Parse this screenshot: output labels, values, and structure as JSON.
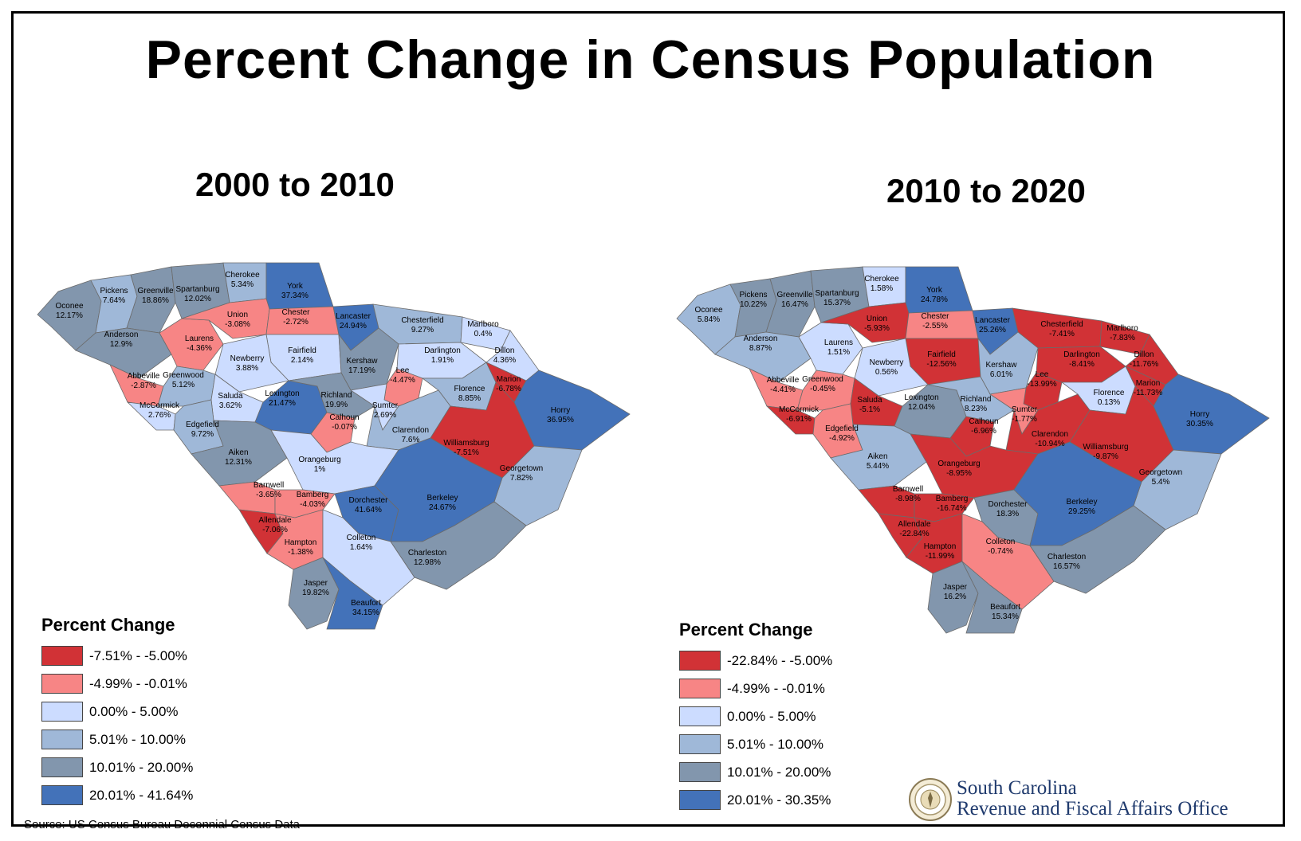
{
  "title": "Percent Change in Census Population",
  "maps": [
    {
      "subtitle": "2000 to 2010",
      "legend": {
        "title": "Percent Change",
        "items": [
          {
            "label": "-7.51% - -5.00%",
            "color": "#d13236"
          },
          {
            "label": "-4.99% - -0.01%",
            "color": "#f78585"
          },
          {
            "label": "0.00% - 5.00%",
            "color": "#ccdcff"
          },
          {
            "label": "5.01% - 10.00%",
            "color": "#9fb8d8"
          },
          {
            "label": "10.01% - 20.00%",
            "color": "#8296ad"
          },
          {
            "label": "20.01% - 41.64%",
            "color": "#4372b9"
          }
        ]
      },
      "counties": [
        {
          "name": "Oconee",
          "value": "12.17%",
          "cls": 4
        },
        {
          "name": "Pickens",
          "value": "7.64%",
          "cls": 3
        },
        {
          "name": "Greenville",
          "value": "18.86%",
          "cls": 4
        },
        {
          "name": "Spartanburg",
          "value": "12.02%",
          "cls": 4
        },
        {
          "name": "Cherokee",
          "value": "5.34%",
          "cls": 3
        },
        {
          "name": "York",
          "value": "37.34%",
          "cls": 5
        },
        {
          "name": "Anderson",
          "value": "12.9%",
          "cls": 4
        },
        {
          "name": "Laurens",
          "value": "-4.36%",
          "cls": 1
        },
        {
          "name": "Union",
          "value": "-3.08%",
          "cls": 1
        },
        {
          "name": "Chester",
          "value": "-2.72%",
          "cls": 1
        },
        {
          "name": "Lancaster",
          "value": "24.94%",
          "cls": 5
        },
        {
          "name": "Chesterfield",
          "value": "9.27%",
          "cls": 3
        },
        {
          "name": "Marlboro",
          "value": "0.4%",
          "cls": 2
        },
        {
          "name": "Fairfield",
          "value": "2.14%",
          "cls": 2
        },
        {
          "name": "Newberry",
          "value": "3.88%",
          "cls": 2
        },
        {
          "name": "Kershaw",
          "value": "17.19%",
          "cls": 4
        },
        {
          "name": "Darlington",
          "value": "1.91%",
          "cls": 2
        },
        {
          "name": "Dillon",
          "value": "4.36%",
          "cls": 2
        },
        {
          "name": "Abbeville",
          "value": "-2.87%",
          "cls": 1
        },
        {
          "name": "Greenwood",
          "value": "5.12%",
          "cls": 3
        },
        {
          "name": "McCormick",
          "value": "2.76%",
          "cls": 2
        },
        {
          "name": "Saluda",
          "value": "3.62%",
          "cls": 2
        },
        {
          "name": "Edgefield",
          "value": "9.72%",
          "cls": 3
        },
        {
          "name": "Lexington",
          "value": "21.47%",
          "cls": 5
        },
        {
          "name": "Richland",
          "value": "19.9%",
          "cls": 4
        },
        {
          "name": "Lee",
          "value": "-4.47%",
          "cls": 1
        },
        {
          "name": "Sumter",
          "value": "2.69%",
          "cls": 2
        },
        {
          "name": "Florence",
          "value": "8.85%",
          "cls": 3
        },
        {
          "name": "Marion",
          "value": "-6.78%",
          "cls": 0
        },
        {
          "name": "Horry",
          "value": "36.95%",
          "cls": 5
        },
        {
          "name": "Calhoun",
          "value": "-0.07%",
          "cls": 1
        },
        {
          "name": "Clarendon",
          "value": "7.6%",
          "cls": 3
        },
        {
          "name": "Williamsburg",
          "value": "-7.51%",
          "cls": 0
        },
        {
          "name": "Aiken",
          "value": "12.31%",
          "cls": 4
        },
        {
          "name": "Orangeburg",
          "value": "1%",
          "cls": 2
        },
        {
          "name": "Georgetown",
          "value": "7.82%",
          "cls": 3
        },
        {
          "name": "Barnwell",
          "value": "-3.65%",
          "cls": 1
        },
        {
          "name": "Bamberg",
          "value": "-4.03%",
          "cls": 1
        },
        {
          "name": "Dorchester",
          "value": "41.64%",
          "cls": 5
        },
        {
          "name": "Berkeley",
          "value": "24.67%",
          "cls": 5
        },
        {
          "name": "Allendale",
          "value": "-7.06%",
          "cls": 0
        },
        {
          "name": "Hampton",
          "value": "-1.38%",
          "cls": 1
        },
        {
          "name": "Colleton",
          "value": "1.64%",
          "cls": 2
        },
        {
          "name": "Charleston",
          "value": "12.98%",
          "cls": 4
        },
        {
          "name": "Jasper",
          "value": "19.82%",
          "cls": 4
        },
        {
          "name": "Beaufort",
          "value": "34.15%",
          "cls": 5
        }
      ]
    },
    {
      "subtitle": "2010 to 2020",
      "legend": {
        "title": "Percent Change",
        "items": [
          {
            "label": "-22.84% - -5.00%",
            "color": "#d13236"
          },
          {
            "label": "-4.99% - -0.01%",
            "color": "#f78585"
          },
          {
            "label": "0.00% - 5.00%",
            "color": "#ccdcff"
          },
          {
            "label": "5.01% - 10.00%",
            "color": "#9fb8d8"
          },
          {
            "label": "10.01% - 20.00%",
            "color": "#8296ad"
          },
          {
            "label": "20.01% - 30.35%",
            "color": "#4372b9"
          }
        ]
      },
      "counties": [
        {
          "name": "Oconee",
          "value": "5.84%",
          "cls": 3
        },
        {
          "name": "Pickens",
          "value": "10.22%",
          "cls": 4
        },
        {
          "name": "Greenville",
          "value": "16.47%",
          "cls": 4
        },
        {
          "name": "Spartanburg",
          "value": "15.37%",
          "cls": 4
        },
        {
          "name": "Cherokee",
          "value": "1.58%",
          "cls": 2
        },
        {
          "name": "York",
          "value": "24.78%",
          "cls": 5
        },
        {
          "name": "Anderson",
          "value": "8.87%",
          "cls": 3
        },
        {
          "name": "Laurens",
          "value": "1.51%",
          "cls": 2
        },
        {
          "name": "Union",
          "value": "-5.93%",
          "cls": 0
        },
        {
          "name": "Chester",
          "value": "-2.55%",
          "cls": 1
        },
        {
          "name": "Lancaster",
          "value": "25.26%",
          "cls": 5
        },
        {
          "name": "Chesterfield",
          "value": "-7.41%",
          "cls": 0
        },
        {
          "name": "Marlboro",
          "value": "-7.83%",
          "cls": 0
        },
        {
          "name": "Fairfield",
          "value": "-12.56%",
          "cls": 0
        },
        {
          "name": "Newberry",
          "value": "0.56%",
          "cls": 2
        },
        {
          "name": "Kershaw",
          "value": "6.01%",
          "cls": 3
        },
        {
          "name": "Darlington",
          "value": "-8.41%",
          "cls": 0
        },
        {
          "name": "Dillon",
          "value": "-11.76%",
          "cls": 0
        },
        {
          "name": "Abbeville",
          "value": "-4.41%",
          "cls": 1
        },
        {
          "name": "Greenwood",
          "value": "-0.45%",
          "cls": 1
        },
        {
          "name": "McCormick",
          "value": "-6.91%",
          "cls": 0
        },
        {
          "name": "Saluda",
          "value": "-5.1%",
          "cls": 0
        },
        {
          "name": "Edgefield",
          "value": "-4.92%",
          "cls": 1
        },
        {
          "name": "Lexington",
          "value": "12.04%",
          "cls": 4
        },
        {
          "name": "Richland",
          "value": "8.23%",
          "cls": 3
        },
        {
          "name": "Lee",
          "value": "-13.99%",
          "cls": 0
        },
        {
          "name": "Sumter",
          "value": "-1.77%",
          "cls": 1
        },
        {
          "name": "Florence",
          "value": "0.13%",
          "cls": 2
        },
        {
          "name": "Marion",
          "value": "-11.73%",
          "cls": 0
        },
        {
          "name": "Horry",
          "value": "30.35%",
          "cls": 5
        },
        {
          "name": "Calhoun",
          "value": "-6.96%",
          "cls": 0
        },
        {
          "name": "Clarendon",
          "value": "-10.94%",
          "cls": 0
        },
        {
          "name": "Williamsburg",
          "value": "-9.87%",
          "cls": 0
        },
        {
          "name": "Aiken",
          "value": "5.44%",
          "cls": 3
        },
        {
          "name": "Orangeburg",
          "value": "-8.95%",
          "cls": 0
        },
        {
          "name": "Georgetown",
          "value": "5.4%",
          "cls": 3
        },
        {
          "name": "Barnwell",
          "value": "-8.98%",
          "cls": 0
        },
        {
          "name": "Bamberg",
          "value": "-16.74%",
          "cls": 0
        },
        {
          "name": "Dorchester",
          "value": "18.3%",
          "cls": 4
        },
        {
          "name": "Berkeley",
          "value": "29.25%",
          "cls": 5
        },
        {
          "name": "Allendale",
          "value": "-22.84%",
          "cls": 0
        },
        {
          "name": "Hampton",
          "value": "-11.99%",
          "cls": 0
        },
        {
          "name": "Colleton",
          "value": "-0.74%",
          "cls": 1
        },
        {
          "name": "Charleston",
          "value": "16.57%",
          "cls": 4
        },
        {
          "name": "Jasper",
          "value": "16.2%",
          "cls": 4
        },
        {
          "name": "Beaufort",
          "value": "15.34%",
          "cls": 4
        }
      ]
    }
  ],
  "source": "Source: US Census Bureau Decennial Census Data",
  "office": {
    "line1": "South Carolina",
    "line2": "Revenue and Fiscal Affairs Office"
  }
}
